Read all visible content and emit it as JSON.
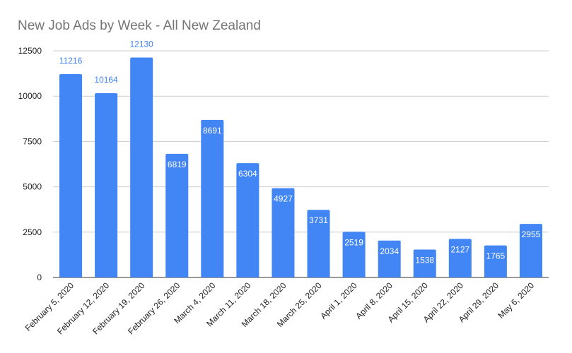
{
  "chart_data": {
    "type": "bar",
    "title": "New Job Ads by Week - All New Zealand",
    "xlabel": "",
    "ylabel": "",
    "categories": [
      "February 5, 2020",
      "February 12, 2020",
      "February 19, 2020",
      "February 26, 2020",
      "March 4, 2020",
      "March 11, 2020",
      "March 18, 2020",
      "March 25, 2020",
      "April 1, 2020",
      "April 8, 2020",
      "April 15, 2020",
      "April 22, 2020",
      "April 29, 2020",
      "May 6, 2020"
    ],
    "values": [
      11216,
      10164,
      12130,
      6819,
      8691,
      6304,
      4927,
      3731,
      2519,
      2034,
      1538,
      2127,
      1765,
      2955
    ],
    "ylim": [
      0,
      12500
    ],
    "yticks": [
      0,
      2500,
      5000,
      7500,
      10000,
      12500
    ],
    "grid": true,
    "legend": "none",
    "colors": {
      "bar": "#4285f4",
      "label_outside": "#4285f4",
      "label_inside": "#ffffff",
      "grid": "#cccccc",
      "baseline": "#333333"
    }
  }
}
